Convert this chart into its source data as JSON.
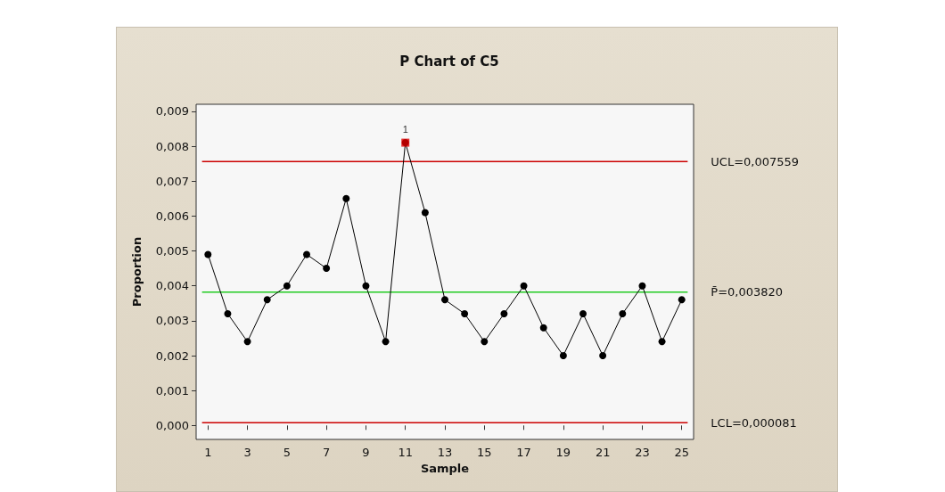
{
  "chart_data": {
    "type": "line",
    "title": "P Chart of C5",
    "xlabel": "Sample",
    "ylabel": "Proportion",
    "x": [
      1,
      2,
      3,
      4,
      5,
      6,
      7,
      8,
      9,
      10,
      11,
      12,
      13,
      14,
      15,
      16,
      17,
      18,
      19,
      20,
      21,
      22,
      23,
      24,
      25
    ],
    "series": [
      {
        "color": "#000000",
        "marker": "circle",
        "values": [
          0.0049,
          0.0032,
          0.0024,
          0.0036,
          0.004,
          0.0049,
          0.0045,
          0.0065,
          0.004,
          0.0024,
          0.0081,
          0.0061,
          0.0036,
          0.0032,
          0.0024,
          0.0032,
          0.004,
          0.0028,
          0.002,
          0.0032,
          0.002,
          0.0032,
          0.004,
          0.0024,
          0.0036
        ]
      },
      {
        "type": "scatter",
        "color": "#e00000",
        "marker": "square",
        "x": [
          11
        ],
        "values": [
          0.0081
        ]
      }
    ],
    "annotations": [
      {
        "text": "1",
        "x": 11,
        "y": 0.0081
      }
    ],
    "ref_lines": [
      {
        "axis": "y",
        "value": 0.007559,
        "label": "UCL=0,007559",
        "color": "#cc0000"
      },
      {
        "axis": "y",
        "value": 0.00382,
        "label": "P̄=0,003820",
        "color": "#22cc22"
      },
      {
        "axis": "y",
        "value": 8.1e-05,
        "label": "LCL=0,000081",
        "color": "#cc0000"
      }
    ],
    "xlim": [
      0.4,
      25.6
    ],
    "xticks": [
      1,
      3,
      5,
      7,
      9,
      11,
      13,
      15,
      17,
      19,
      21,
      23,
      25
    ],
    "ylim": [
      -0.0004,
      0.0092
    ],
    "yticks": [
      {
        "value": 0,
        "label": "0,000"
      },
      {
        "value": 0.001,
        "label": "0,001"
      },
      {
        "value": 0.002,
        "label": "0,002"
      },
      {
        "value": 0.003,
        "label": "0,003"
      },
      {
        "value": 0.004,
        "label": "0,004"
      },
      {
        "value": 0.005,
        "label": "0,005"
      },
      {
        "value": 0.006,
        "label": "0,006"
      },
      {
        "value": 0.007,
        "label": "0,007"
      },
      {
        "value": 0.008,
        "label": "0,008"
      },
      {
        "value": 0.009,
        "label": "0,009"
      }
    ],
    "grid": false,
    "line_style": "solid"
  }
}
